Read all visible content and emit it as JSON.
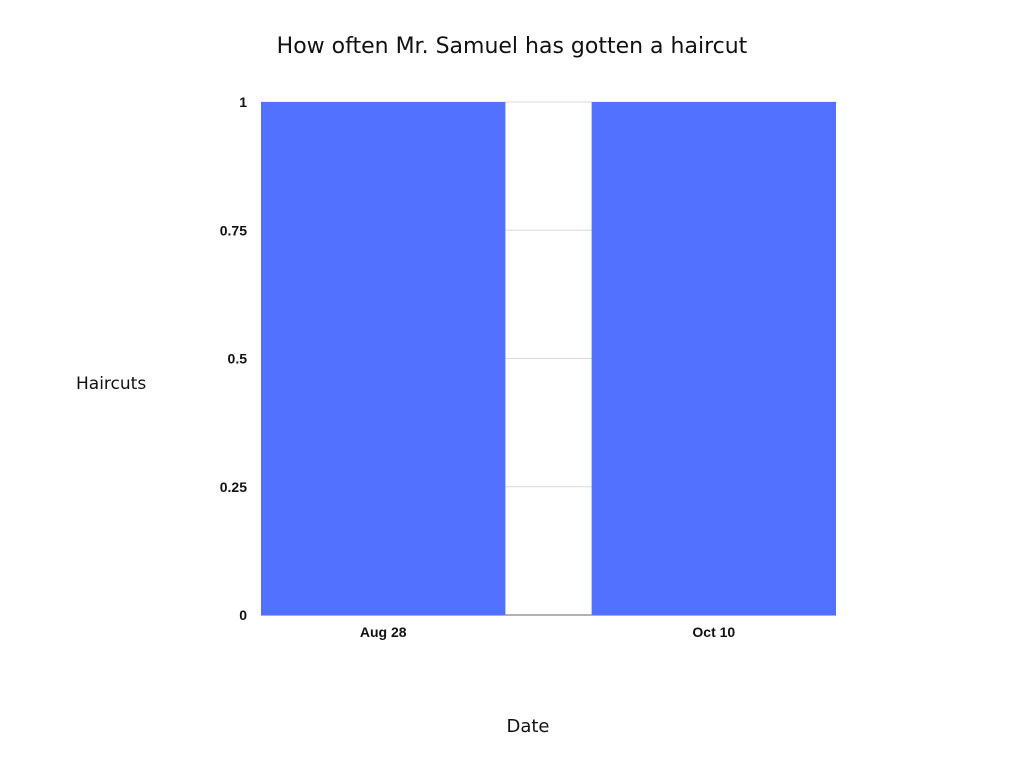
{
  "chart_data": {
    "type": "bar",
    "title": "How often Mr. Samuel has gotten a haircut",
    "xlabel": "Date",
    "ylabel": "Haircuts",
    "categories": [
      "Aug 28",
      "Oct 10"
    ],
    "values": [
      1,
      1
    ],
    "ylim": [
      0,
      1
    ],
    "yticks": [
      "0",
      "0.25",
      "0.5",
      "0.75",
      "1"
    ],
    "grid": true,
    "legend": "none",
    "colors": {
      "bar": "#5271ff",
      "grid": "#d9d9d9",
      "axis": "#666666"
    }
  }
}
